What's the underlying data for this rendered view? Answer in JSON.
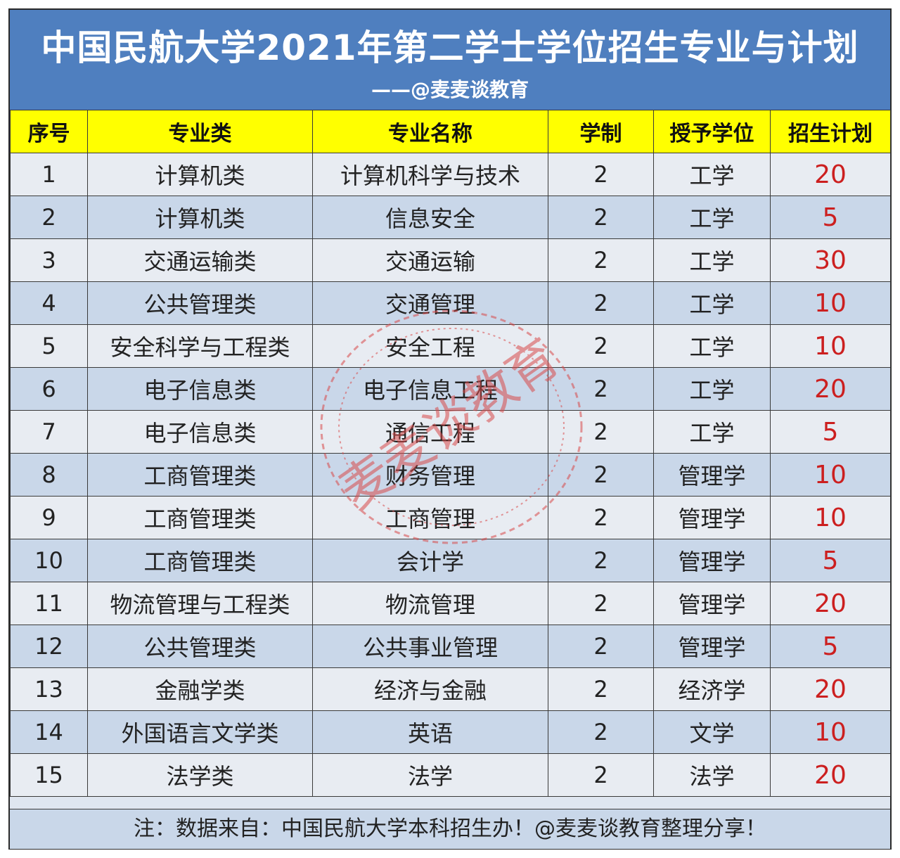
{
  "header": {
    "title": "中国民航大学2021年第二学士学位招生专业与计划",
    "subtitle": "——@麦麦谈教育"
  },
  "table": {
    "columns": [
      "序号",
      "专业类",
      "专业名称",
      "学制",
      "授予学位",
      "招生计划"
    ],
    "rows": [
      [
        "1",
        "计算机类",
        "计算机科学与技术",
        "2",
        "工学",
        "20"
      ],
      [
        "2",
        "计算机类",
        "信息安全",
        "2",
        "工学",
        "5"
      ],
      [
        "3",
        "交通运输类",
        "交通运输",
        "2",
        "工学",
        "30"
      ],
      [
        "4",
        "公共管理类",
        "交通管理",
        "2",
        "工学",
        "10"
      ],
      [
        "5",
        "安全科学与工程类",
        "安全工程",
        "2",
        "工学",
        "10"
      ],
      [
        "6",
        "电子信息类",
        "电子信息工程",
        "2",
        "工学",
        "20"
      ],
      [
        "7",
        "电子信息类",
        "通信工程",
        "2",
        "工学",
        "5"
      ],
      [
        "8",
        "工商管理类",
        "财务管理",
        "2",
        "管理学",
        "10"
      ],
      [
        "9",
        "工商管理类",
        "工商管理",
        "2",
        "管理学",
        "10"
      ],
      [
        "10",
        "工商管理类",
        "会计学",
        "2",
        "管理学",
        "5"
      ],
      [
        "11",
        "物流管理与工程类",
        "物流管理",
        "2",
        "管理学",
        "20"
      ],
      [
        "12",
        "公共管理类",
        "公共事业管理",
        "2",
        "管理学",
        "5"
      ],
      [
        "13",
        "金融学类",
        "经济与金融",
        "2",
        "经济学",
        "20"
      ],
      [
        "14",
        "外国语言文学类",
        "英语",
        "2",
        "文学",
        "10"
      ],
      [
        "15",
        "法学类",
        "法学",
        "2",
        "法学",
        "20"
      ]
    ]
  },
  "footer": {
    "note": "注：数据来自：中国民航大学本科招生办！@麦麦谈教育整理分享！"
  },
  "watermark": {
    "text": "麦麦谈教育",
    "color": "#d94a4a"
  },
  "colors": {
    "title_bg": "#4f7fbf",
    "header_bg": "#ffff00",
    "row_light": "#e8ecf2",
    "row_dark": "#c9d7e9",
    "plan_text": "#cc1f1f"
  }
}
